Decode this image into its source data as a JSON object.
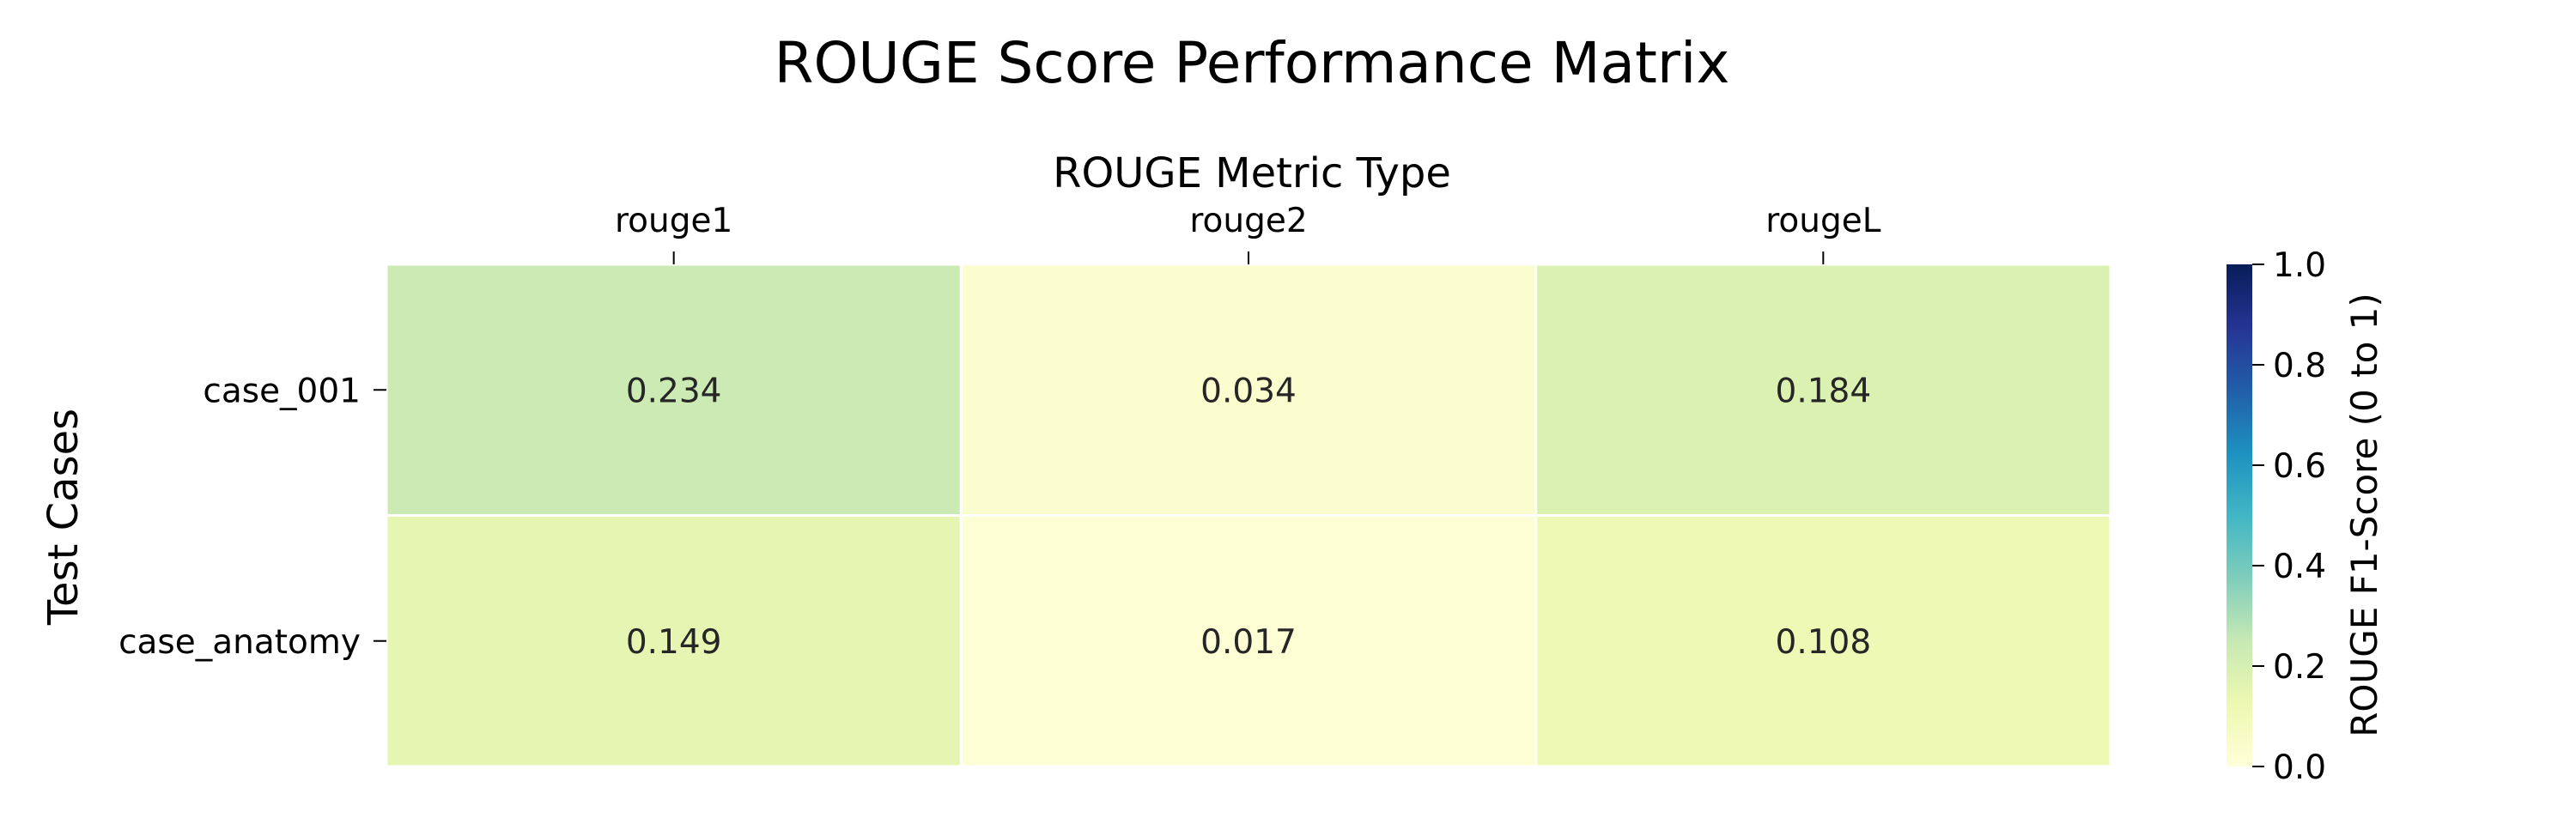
{
  "chart_data": {
    "type": "heatmap",
    "title": "ROUGE Score Performance Matrix",
    "xlabel": "ROUGE Metric Type",
    "ylabel": "Test Cases",
    "x_position": "top",
    "columns": [
      "rouge1",
      "rouge2",
      "rougeL"
    ],
    "rows": [
      "case_001",
      "case_anatomy"
    ],
    "values": [
      [
        0.234,
        0.034,
        0.184
      ],
      [
        0.149,
        0.017,
        0.108
      ]
    ],
    "value_labels": [
      [
        "0.234",
        "0.034",
        "0.184"
      ],
      [
        "0.149",
        "0.017",
        "0.108"
      ]
    ],
    "colormap": "YlGnBu",
    "colorbar": {
      "label": "ROUGE F1-Score (0 to 1)",
      "range": [
        0.0,
        1.0
      ],
      "ticks": [
        "0.0",
        "0.2",
        "0.4",
        "0.6",
        "0.8",
        "1.0"
      ]
    },
    "colormap_stops": [
      "#ffffd9",
      "#edf8b1",
      "#c7e9b4",
      "#7fcdbb",
      "#41b6c4",
      "#1d91c0",
      "#225ea8",
      "#253494",
      "#081d58"
    ]
  }
}
